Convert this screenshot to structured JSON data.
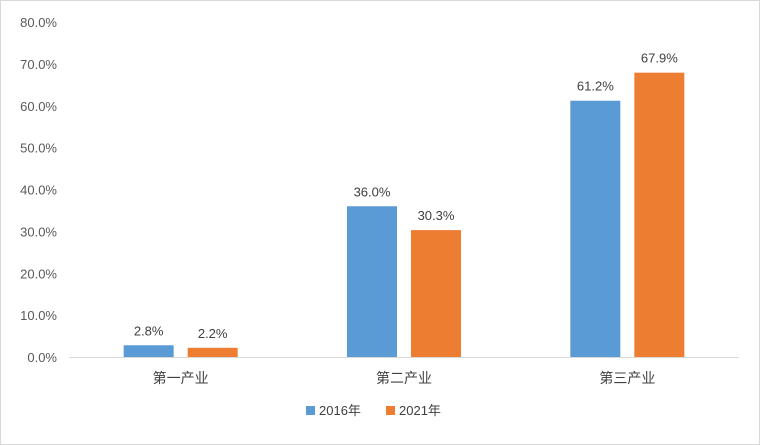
{
  "chart_data": {
    "type": "bar",
    "categories": [
      "第一产业",
      "第二产业",
      "第三产业"
    ],
    "series": [
      {
        "name": "2016年",
        "values": [
          2.8,
          36.0,
          61.2
        ],
        "labels": [
          "2.8%",
          "36.0%",
          "61.2%"
        ],
        "color": "#5b9bd5"
      },
      {
        "name": "2021年",
        "values": [
          2.2,
          30.3,
          67.9
        ],
        "labels": [
          "2.2%",
          "30.3%",
          "67.9%"
        ],
        "color": "#ed7d31"
      }
    ],
    "ylim": [
      0,
      80
    ],
    "yticks": [
      0,
      10,
      20,
      30,
      40,
      50,
      60,
      70,
      80
    ],
    "ytick_labels": [
      "0.0%",
      "10.0%",
      "20.0%",
      "30.0%",
      "40.0%",
      "50.0%",
      "60.0%",
      "70.0%",
      "80.0%"
    ],
    "grid": false,
    "legend": "bottom-center"
  }
}
